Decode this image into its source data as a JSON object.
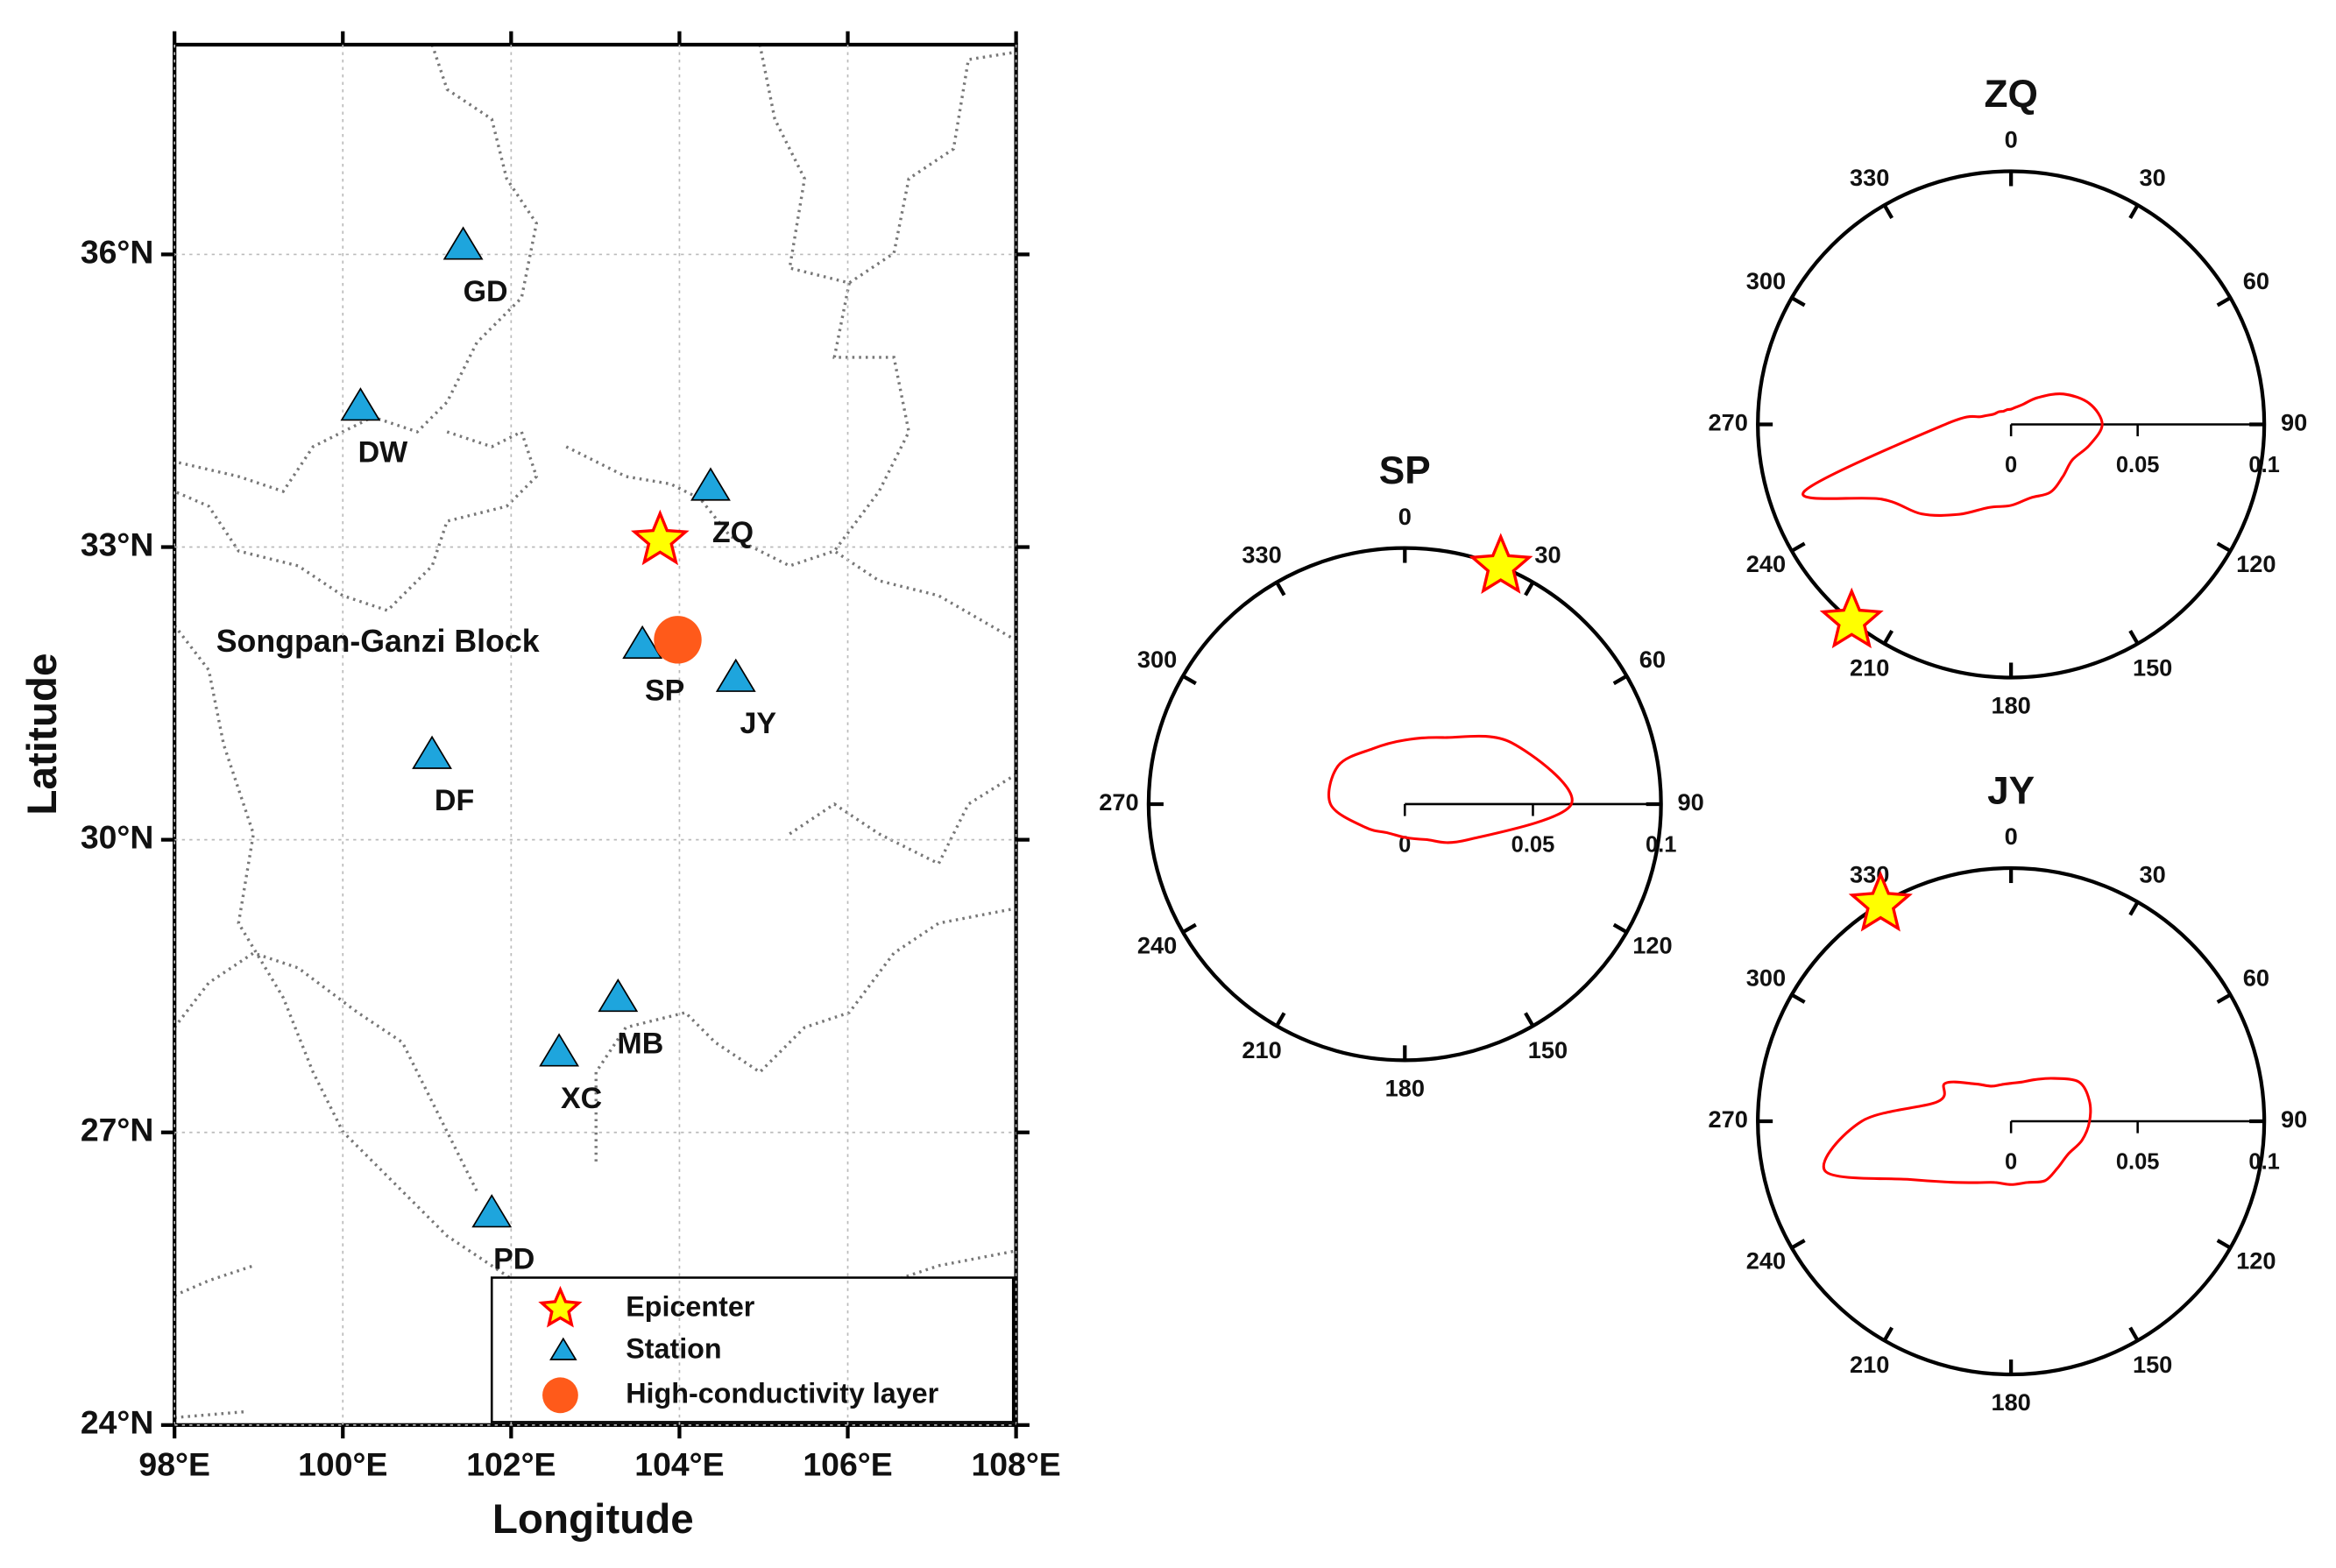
{
  "map": {
    "x_label": "Longitude",
    "y_label": "Latitude",
    "xlim": [
      98,
      108
    ],
    "ylim": [
      24,
      38.15
    ],
    "xticks": [
      {
        "value": 98,
        "label": "98°E"
      },
      {
        "value": 100,
        "label": "100°E"
      },
      {
        "value": 102,
        "label": "102°E"
      },
      {
        "value": 104,
        "label": "104°E"
      },
      {
        "value": 106,
        "label": "106°E"
      },
      {
        "value": 108,
        "label": "108°E"
      }
    ],
    "yticks": [
      {
        "value": 24,
        "label": "24°N"
      },
      {
        "value": 27,
        "label": "27°N"
      },
      {
        "value": 30,
        "label": "30°N"
      },
      {
        "value": 33,
        "label": "33°N"
      },
      {
        "value": 36,
        "label": "36°N"
      }
    ],
    "grid": true,
    "region_label": "Songpan-Ganzi Block",
    "station_color": "#1ea5dd",
    "epicenter_color": "#ffff00",
    "high_conductivity_color": "#ff5a1a",
    "stations": [
      {
        "name": "GD",
        "lon": 101.43,
        "lat": 36.09
      },
      {
        "name": "DW",
        "lon": 100.21,
        "lat": 34.44
      },
      {
        "name": "ZQ",
        "lon": 104.37,
        "lat": 33.62
      },
      {
        "name": "SP",
        "lon": 103.56,
        "lat": 32.0
      },
      {
        "name": "JY",
        "lon": 104.67,
        "lat": 31.66
      },
      {
        "name": "DF",
        "lon": 101.06,
        "lat": 30.87
      },
      {
        "name": "MB",
        "lon": 103.27,
        "lat": 28.38
      },
      {
        "name": "XC",
        "lon": 102.57,
        "lat": 27.82
      },
      {
        "name": "PD",
        "lon": 101.77,
        "lat": 26.17
      }
    ],
    "epicenter": {
      "lon": 103.77,
      "lat": 33.07
    },
    "high_conductivity_layer": {
      "lon": 103.98,
      "lat": 32.05
    },
    "legend": {
      "epicenter": "Epicenter",
      "station": "Station",
      "high_conductivity_layer": "High-conductivity layer"
    }
  },
  "polar_plots": [
    {
      "title": "SP",
      "angle_ticks": [
        0,
        30,
        60,
        90,
        120,
        150,
        180,
        210,
        240,
        270,
        300,
        330
      ],
      "rlim": [
        0,
        0.1
      ],
      "rticks": [
        0,
        0.05,
        0.1
      ],
      "epicenter_azimuth": 22,
      "pattern_color": "#ff0000",
      "pattern": {
        "theta": [
          0,
          30,
          60,
          90,
          120,
          150,
          180,
          210,
          240,
          270,
          300,
          330
        ],
        "r": [
          0.025,
          0.03,
          0.048,
          0.065,
          0.028,
          0.016,
          0.013,
          0.013,
          0.018,
          0.029,
          0.03,
          0.025
        ]
      }
    },
    {
      "title": "ZQ",
      "angle_ticks": [
        0,
        30,
        60,
        90,
        120,
        150,
        180,
        210,
        240,
        270,
        300,
        330
      ],
      "rlim": [
        0,
        0.1
      ],
      "rticks": [
        0,
        0.05,
        0.1
      ],
      "epicenter_azimuth": 219,
      "pattern_color": "#ff0000",
      "pattern": {
        "theta": [
          0,
          15,
          30,
          45,
          60,
          75,
          90,
          105,
          120,
          135,
          150,
          165,
          180,
          195,
          210,
          225,
          240,
          252,
          270,
          285,
          300,
          315,
          330,
          345
        ],
        "r": [
          0.006,
          0.007,
          0.009,
          0.015,
          0.024,
          0.032,
          0.036,
          0.032,
          0.028,
          0.029,
          0.031,
          0.03,
          0.032,
          0.034,
          0.041,
          0.05,
          0.059,
          0.086,
          0.026,
          0.012,
          0.008,
          0.007,
          0.006,
          0.006
        ]
      }
    },
    {
      "title": "JY",
      "angle_ticks": [
        0,
        30,
        60,
        90,
        120,
        150,
        180,
        210,
        240,
        270,
        300,
        330
      ],
      "rlim": [
        0,
        0.1
      ],
      "rticks": [
        0,
        0.05,
        0.1
      ],
      "epicenter_azimuth": 329,
      "pattern_color": "#ff0000",
      "pattern": {
        "theta": [
          0,
          15,
          30,
          45,
          60,
          75,
          90,
          105,
          120,
          135,
          150,
          165,
          180,
          195,
          210,
          225,
          240,
          255,
          270,
          285,
          300,
          315,
          330,
          345
        ],
        "r": [
          0.015,
          0.016,
          0.019,
          0.024,
          0.031,
          0.032,
          0.031,
          0.029,
          0.026,
          0.026,
          0.027,
          0.025,
          0.025,
          0.025,
          0.028,
          0.034,
          0.046,
          0.076,
          0.059,
          0.03,
          0.03,
          0.021,
          0.016,
          0.015
        ]
      }
    }
  ]
}
